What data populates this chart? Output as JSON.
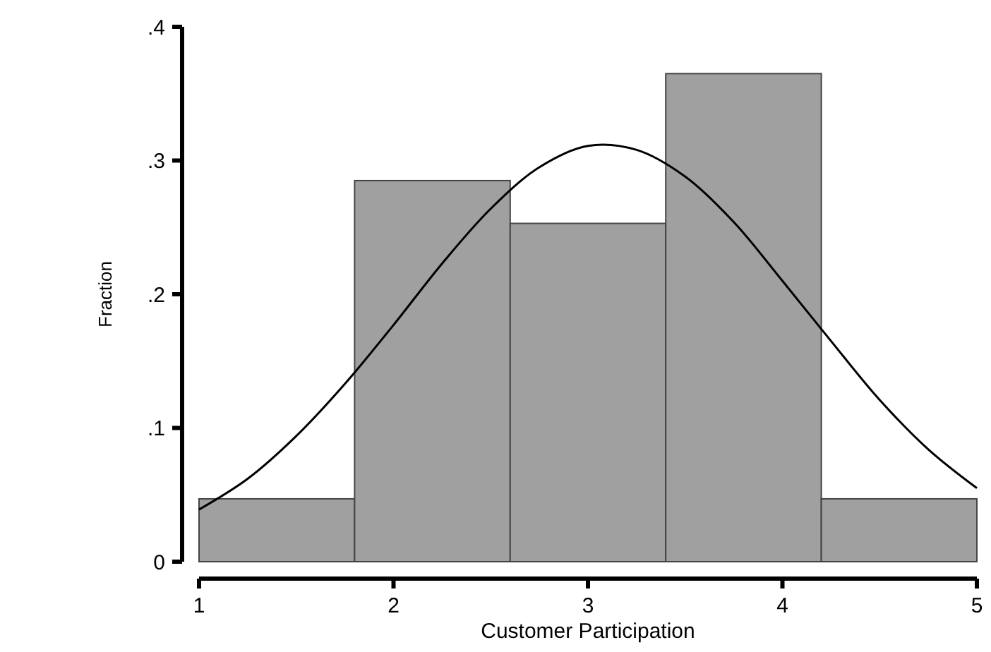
{
  "chart_data": {
    "type": "histogram",
    "xlabel": "Customer Participation",
    "ylabel": "Fraction",
    "bins": [
      1,
      1.8,
      2.6,
      3.4,
      4.2,
      5
    ],
    "values": [
      0.047,
      0.285,
      0.253,
      0.365,
      0.047
    ],
    "color": "#a0a0a0",
    "series": [
      {
        "type": "line",
        "color": "#000000",
        "x": [
          1,
          1.25,
          1.5,
          1.75,
          2,
          2.25,
          2.5,
          2.75,
          3,
          3.25,
          3.5,
          3.75,
          4,
          4.25,
          4.5,
          4.75,
          5
        ],
        "values": [
          0.039,
          0.062,
          0.094,
          0.133,
          0.177,
          0.223,
          0.264,
          0.295,
          0.311,
          0.308,
          0.288,
          0.254,
          0.21,
          0.165,
          0.121,
          0.084,
          0.055
        ]
      }
    ],
    "xlim": [
      1,
      5
    ],
    "xticks": [
      1,
      2,
      3,
      4,
      5
    ],
    "ylim": [
      0,
      0.4
    ],
    "yticks": [
      0,
      {
        "value": 0.1,
        "label": ".1"
      },
      {
        "value": 0.2,
        "label": ".2"
      },
      {
        "value": 0.3,
        "label": ".3"
      },
      {
        "value": 0.4,
        "label": ".4"
      }
    ],
    "grid": false
  }
}
